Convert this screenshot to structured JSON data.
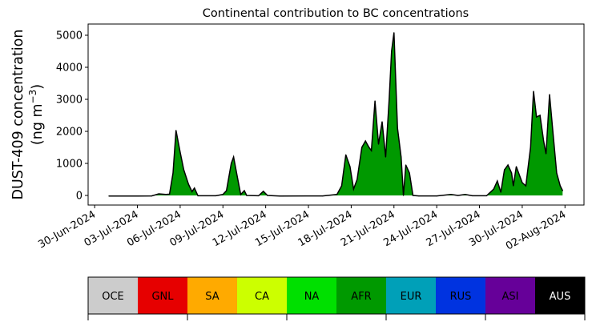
{
  "chart_data": {
    "type": "area",
    "title": "Continental contribution to BC concentrations",
    "ylabel_line1": "DUST-409 concentration",
    "ylabel_line2_prefix": "(ng m",
    "ylabel_line2_sup": "−3",
    "ylabel_line2_suffix": ")",
    "ylim": [
      -300,
      5350
    ],
    "xlim": [
      "2024-06-29T13:00",
      "2024-08-03T08:00"
    ],
    "yticks": [
      0,
      1000,
      2000,
      3000,
      4000,
      5000
    ],
    "ytick_labels": [
      "0",
      "1000",
      "2000",
      "3000",
      "4000",
      "5000"
    ],
    "xticks": [
      "2024-06-30",
      "2024-07-03",
      "2024-07-06",
      "2024-07-09",
      "2024-07-12",
      "2024-07-15",
      "2024-07-18",
      "2024-07-21",
      "2024-07-24",
      "2024-07-27",
      "2024-07-30",
      "2024-08-02"
    ],
    "xtick_labels": [
      "30-Jun-2024",
      "03-Jul-2024",
      "06-Jul-2024",
      "09-Jul-2024",
      "12-Jul-2024",
      "15-Jul-2024",
      "18-Jul-2024",
      "21-Jul-2024",
      "24-Jul-2024",
      "27-Jul-2024",
      "30-Jul-2024",
      "02-Aug-2024"
    ],
    "series": [
      {
        "name": "AFR",
        "color": "#009900",
        "points": [
          [
            "2024-07-01T00:00",
            -20
          ],
          [
            "2024-07-03T00:00",
            -20
          ],
          [
            "2024-07-04T00:00",
            -15
          ],
          [
            "2024-07-04T12:00",
            50
          ],
          [
            "2024-07-05T00:00",
            30
          ],
          [
            "2024-07-05T06:00",
            40
          ],
          [
            "2024-07-05T12:00",
            700
          ],
          [
            "2024-07-05T17:00",
            2030
          ],
          [
            "2024-07-06T00:00",
            1350
          ],
          [
            "2024-07-06T06:00",
            800
          ],
          [
            "2024-07-06T14:00",
            350
          ],
          [
            "2024-07-06T20:00",
            120
          ],
          [
            "2024-07-07T00:00",
            230
          ],
          [
            "2024-07-07T06:00",
            -10
          ],
          [
            "2024-07-08T12:00",
            -10
          ],
          [
            "2024-07-09T00:00",
            30
          ],
          [
            "2024-07-09T06:00",
            150
          ],
          [
            "2024-07-09T14:00",
            1000
          ],
          [
            "2024-07-09T18:00",
            1200
          ],
          [
            "2024-07-10T00:00",
            600
          ],
          [
            "2024-07-10T06:00",
            30
          ],
          [
            "2024-07-10T12:00",
            150
          ],
          [
            "2024-07-10T16:00",
            0
          ],
          [
            "2024-07-11T12:00",
            -10
          ],
          [
            "2024-07-11T20:00",
            130
          ],
          [
            "2024-07-12T03:00",
            0
          ],
          [
            "2024-07-13T00:00",
            -20
          ],
          [
            "2024-07-16T00:00",
            -15
          ],
          [
            "2024-07-17T00:00",
            30
          ],
          [
            "2024-07-17T08:00",
            300
          ],
          [
            "2024-07-17T15:00",
            1270
          ],
          [
            "2024-07-17T22:00",
            900
          ],
          [
            "2024-07-18T04:00",
            200
          ],
          [
            "2024-07-18T10:00",
            500
          ],
          [
            "2024-07-18T18:00",
            1500
          ],
          [
            "2024-07-19T00:00",
            1700
          ],
          [
            "2024-07-19T06:00",
            1500
          ],
          [
            "2024-07-19T10:00",
            1400
          ],
          [
            "2024-07-19T16:00",
            2950
          ],
          [
            "2024-07-19T22:00",
            1600
          ],
          [
            "2024-07-20T04:00",
            2300
          ],
          [
            "2024-07-20T10:00",
            1200
          ],
          [
            "2024-07-20T16:00",
            3000
          ],
          [
            "2024-07-20T20:00",
            4500
          ],
          [
            "2024-07-21T00:00",
            5080
          ],
          [
            "2024-07-21T06:00",
            2100
          ],
          [
            "2024-07-21T12:00",
            1200
          ],
          [
            "2024-07-21T16:00",
            0
          ],
          [
            "2024-07-21T20:00",
            950
          ],
          [
            "2024-07-22T02:00",
            700
          ],
          [
            "2024-07-22T08:00",
            0
          ],
          [
            "2024-07-22T18:00",
            -15
          ],
          [
            "2024-07-24T00:00",
            -15
          ],
          [
            "2024-07-25T00:00",
            30
          ],
          [
            "2024-07-25T12:00",
            0
          ],
          [
            "2024-07-26T00:00",
            30
          ],
          [
            "2024-07-26T12:00",
            -10
          ],
          [
            "2024-07-27T12:00",
            -10
          ],
          [
            "2024-07-28T00:00",
            200
          ],
          [
            "2024-07-28T06:00",
            450
          ],
          [
            "2024-07-28T12:00",
            100
          ],
          [
            "2024-07-28T18:00",
            800
          ],
          [
            "2024-07-29T00:00",
            950
          ],
          [
            "2024-07-29T06:00",
            700
          ],
          [
            "2024-07-29T09:00",
            300
          ],
          [
            "2024-07-29T14:00",
            900
          ],
          [
            "2024-07-29T20:00",
            600
          ],
          [
            "2024-07-30T00:00",
            400
          ],
          [
            "2024-07-30T06:00",
            300
          ],
          [
            "2024-07-30T14:00",
            1500
          ],
          [
            "2024-07-30T19:00",
            3250
          ],
          [
            "2024-07-31T00:00",
            2450
          ],
          [
            "2024-07-31T06:00",
            2500
          ],
          [
            "2024-07-31T12:00",
            1700
          ],
          [
            "2024-07-31T16:00",
            1300
          ],
          [
            "2024-07-31T22:00",
            3150
          ],
          [
            "2024-08-01T04:00",
            1900
          ],
          [
            "2024-08-01T10:00",
            700
          ],
          [
            "2024-08-01T16:00",
            300
          ],
          [
            "2024-08-01T20:00",
            150
          ]
        ]
      }
    ]
  },
  "legend": {
    "items": [
      {
        "label": "OCE",
        "color": "#cccccc",
        "text_color": "#000000"
      },
      {
        "label": "GNL",
        "color": "#e60000",
        "text_color": "#000000"
      },
      {
        "label": "SA",
        "color": "#ffaa00",
        "text_color": "#000000"
      },
      {
        "label": "CA",
        "color": "#ccff00",
        "text_color": "#000000"
      },
      {
        "label": "NA",
        "color": "#00e000",
        "text_color": "#000000"
      },
      {
        "label": "AFR",
        "color": "#009900",
        "text_color": "#000000"
      },
      {
        "label": "EUR",
        "color": "#00a0b8",
        "text_color": "#000000"
      },
      {
        "label": "RUS",
        "color": "#0033e0",
        "text_color": "#000000"
      },
      {
        "label": "ASI",
        "color": "#660099",
        "text_color": "#000000"
      },
      {
        "label": "AUS",
        "color": "#000000",
        "text_color": "#ffffff"
      }
    ]
  }
}
